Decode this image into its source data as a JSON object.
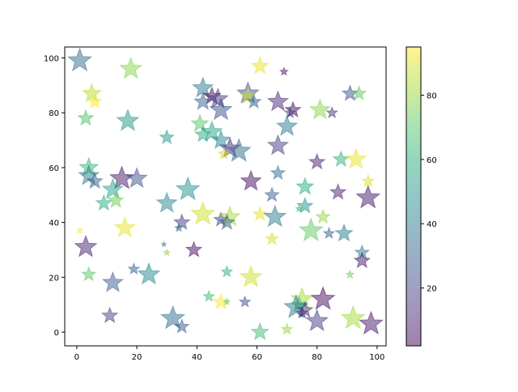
{
  "chart_data": {
    "type": "scatter",
    "marker": "star",
    "title": "",
    "xlabel": "",
    "ylabel": "",
    "xlim": [
      -4,
      103
    ],
    "ylim": [
      -5,
      104
    ],
    "xticks": [
      0,
      20,
      40,
      60,
      80,
      100
    ],
    "yticks": [
      0,
      20,
      40,
      60,
      80,
      100
    ],
    "grid": false,
    "alpha": 0.5,
    "colormap": "viridis",
    "colorbar": {
      "min": 2,
      "max": 95,
      "ticks": [
        20,
        40,
        60,
        80
      ]
    },
    "points": [
      {
        "x": 1,
        "y": 99,
        "size": 30,
        "c": 35
      },
      {
        "x": 18,
        "y": 96,
        "size": 28,
        "c": 78
      },
      {
        "x": 61,
        "y": 97,
        "size": 22,
        "c": 92
      },
      {
        "x": 69,
        "y": 95,
        "size": 10,
        "c": 8
      },
      {
        "x": 5,
        "y": 87,
        "size": 24,
        "c": 85
      },
      {
        "x": 6,
        "y": 84,
        "size": 18,
        "c": 95
      },
      {
        "x": 42,
        "y": 89,
        "size": 26,
        "c": 40
      },
      {
        "x": 45,
        "y": 86,
        "size": 22,
        "c": 5
      },
      {
        "x": 47,
        "y": 85,
        "size": 26,
        "c": 18
      },
      {
        "x": 42,
        "y": 84,
        "size": 22,
        "c": 30
      },
      {
        "x": 57,
        "y": 87,
        "size": 28,
        "c": 25
      },
      {
        "x": 57,
        "y": 86,
        "size": 20,
        "c": 88
      },
      {
        "x": 59,
        "y": 84,
        "size": 18,
        "c": 30
      },
      {
        "x": 67,
        "y": 84,
        "size": 26,
        "c": 12
      },
      {
        "x": 72,
        "y": 81,
        "size": 20,
        "c": 5
      },
      {
        "x": 71,
        "y": 80,
        "size": 14,
        "c": 20
      },
      {
        "x": 91,
        "y": 87,
        "size": 20,
        "c": 25
      },
      {
        "x": 94,
        "y": 87,
        "size": 18,
        "c": 72
      },
      {
        "x": 81,
        "y": 81,
        "size": 26,
        "c": 78
      },
      {
        "x": 85,
        "y": 80,
        "size": 14,
        "c": 15
      },
      {
        "x": 48,
        "y": 81,
        "size": 28,
        "c": 25
      },
      {
        "x": 3,
        "y": 78,
        "size": 20,
        "c": 68
      },
      {
        "x": 17,
        "y": 77,
        "size": 28,
        "c": 50
      },
      {
        "x": 41,
        "y": 76,
        "size": 22,
        "c": 70
      },
      {
        "x": 70,
        "y": 75,
        "size": 26,
        "c": 40
      },
      {
        "x": 42,
        "y": 72,
        "size": 20,
        "c": 58
      },
      {
        "x": 30,
        "y": 71,
        "size": 18,
        "c": 50
      },
      {
        "x": 45,
        "y": 73,
        "size": 26,
        "c": 55
      },
      {
        "x": 48,
        "y": 70,
        "size": 24,
        "c": 45
      },
      {
        "x": 51,
        "y": 67,
        "size": 26,
        "c": 12
      },
      {
        "x": 54,
        "y": 66,
        "size": 30,
        "c": 35
      },
      {
        "x": 49,
        "y": 65,
        "size": 14,
        "c": 88
      },
      {
        "x": 67,
        "y": 68,
        "size": 26,
        "c": 18
      },
      {
        "x": 80,
        "y": 62,
        "size": 20,
        "c": 10
      },
      {
        "x": 88,
        "y": 63,
        "size": 20,
        "c": 62
      },
      {
        "x": 93,
        "y": 63,
        "size": 26,
        "c": 92
      },
      {
        "x": 4,
        "y": 60,
        "size": 24,
        "c": 62
      },
      {
        "x": 4,
        "y": 57,
        "size": 26,
        "c": 40
      },
      {
        "x": 15,
        "y": 56,
        "size": 30,
        "c": 8
      },
      {
        "x": 20,
        "y": 56,
        "size": 26,
        "c": 25
      },
      {
        "x": 6,
        "y": 55,
        "size": 20,
        "c": 30
      },
      {
        "x": 58,
        "y": 55,
        "size": 26,
        "c": 5
      },
      {
        "x": 67,
        "y": 58,
        "size": 18,
        "c": 35
      },
      {
        "x": 97,
        "y": 55,
        "size": 16,
        "c": 90
      },
      {
        "x": 12,
        "y": 52,
        "size": 26,
        "c": 55
      },
      {
        "x": 37,
        "y": 52,
        "size": 30,
        "c": 48
      },
      {
        "x": 13,
        "y": 48,
        "size": 20,
        "c": 75
      },
      {
        "x": 9,
        "y": 47,
        "size": 20,
        "c": 60
      },
      {
        "x": 30,
        "y": 47,
        "size": 26,
        "c": 45
      },
      {
        "x": 76,
        "y": 53,
        "size": 22,
        "c": 60
      },
      {
        "x": 65,
        "y": 50,
        "size": 18,
        "c": 30
      },
      {
        "x": 87,
        "y": 51,
        "size": 20,
        "c": 10
      },
      {
        "x": 97,
        "y": 49,
        "size": 30,
        "c": 8
      },
      {
        "x": 3,
        "y": 31,
        "size": 28,
        "c": 10
      },
      {
        "x": 1,
        "y": 37,
        "size": 8,
        "c": 95
      },
      {
        "x": 16,
        "y": 38,
        "size": 26,
        "c": 92
      },
      {
        "x": 35,
        "y": 40,
        "size": 20,
        "c": 18
      },
      {
        "x": 42,
        "y": 43,
        "size": 30,
        "c": 88
      },
      {
        "x": 48,
        "y": 41,
        "size": 18,
        "c": 20
      },
      {
        "x": 51,
        "y": 42,
        "size": 26,
        "c": 82
      },
      {
        "x": 50,
        "y": 40,
        "size": 20,
        "c": 30
      },
      {
        "x": 61,
        "y": 43,
        "size": 18,
        "c": 92
      },
      {
        "x": 66,
        "y": 42,
        "size": 28,
        "c": 40
      },
      {
        "x": 76,
        "y": 46,
        "size": 20,
        "c": 50
      },
      {
        "x": 74,
        "y": 45,
        "size": 8,
        "c": 62
      },
      {
        "x": 82,
        "y": 42,
        "size": 18,
        "c": 80
      },
      {
        "x": 78,
        "y": 37,
        "size": 30,
        "c": 72
      },
      {
        "x": 84,
        "y": 36,
        "size": 14,
        "c": 30
      },
      {
        "x": 89,
        "y": 36,
        "size": 22,
        "c": 40
      },
      {
        "x": 34,
        "y": 38,
        "size": 10,
        "c": 35
      },
      {
        "x": 65,
        "y": 34,
        "size": 16,
        "c": 88
      },
      {
        "x": 95,
        "y": 29,
        "size": 18,
        "c": 40
      },
      {
        "x": 95,
        "y": 26,
        "size": 20,
        "c": 8
      },
      {
        "x": 29,
        "y": 32,
        "size": 6,
        "c": 40
      },
      {
        "x": 30,
        "y": 29,
        "size": 8,
        "c": 80
      },
      {
        "x": 39,
        "y": 30,
        "size": 20,
        "c": 5
      },
      {
        "x": 4,
        "y": 21,
        "size": 18,
        "c": 70
      },
      {
        "x": 19,
        "y": 23,
        "size": 14,
        "c": 30
      },
      {
        "x": 24,
        "y": 21,
        "size": 28,
        "c": 45
      },
      {
        "x": 12,
        "y": 18,
        "size": 26,
        "c": 30
      },
      {
        "x": 50,
        "y": 22,
        "size": 14,
        "c": 62
      },
      {
        "x": 58,
        "y": 20,
        "size": 28,
        "c": 88
      },
      {
        "x": 91,
        "y": 21,
        "size": 10,
        "c": 75
      },
      {
        "x": 44,
        "y": 13,
        "size": 14,
        "c": 65
      },
      {
        "x": 48,
        "y": 11,
        "size": 20,
        "c": 95
      },
      {
        "x": 50,
        "y": 11,
        "size": 8,
        "c": 70
      },
      {
        "x": 56,
        "y": 11,
        "size": 14,
        "c": 25
      },
      {
        "x": 75,
        "y": 12,
        "size": 28,
        "c": 82
      },
      {
        "x": 74,
        "y": 10,
        "size": 20,
        "c": 62
      },
      {
        "x": 73,
        "y": 9,
        "size": 30,
        "c": 40
      },
      {
        "x": 76,
        "y": 8,
        "size": 20,
        "c": 15
      },
      {
        "x": 82,
        "y": 12,
        "size": 30,
        "c": 5
      },
      {
        "x": 75,
        "y": 7,
        "size": 14,
        "c": 10
      },
      {
        "x": 11,
        "y": 6,
        "size": 20,
        "c": 20
      },
      {
        "x": 32,
        "y": 5,
        "size": 30,
        "c": 35
      },
      {
        "x": 35,
        "y": 2,
        "size": 18,
        "c": 30
      },
      {
        "x": 61,
        "y": 0,
        "size": 22,
        "c": 65
      },
      {
        "x": 70,
        "y": 1,
        "size": 14,
        "c": 80
      },
      {
        "x": 80,
        "y": 4,
        "size": 28,
        "c": 18
      },
      {
        "x": 92,
        "y": 5,
        "size": 30,
        "c": 82
      },
      {
        "x": 98,
        "y": 3,
        "size": 30,
        "c": 8
      }
    ]
  }
}
